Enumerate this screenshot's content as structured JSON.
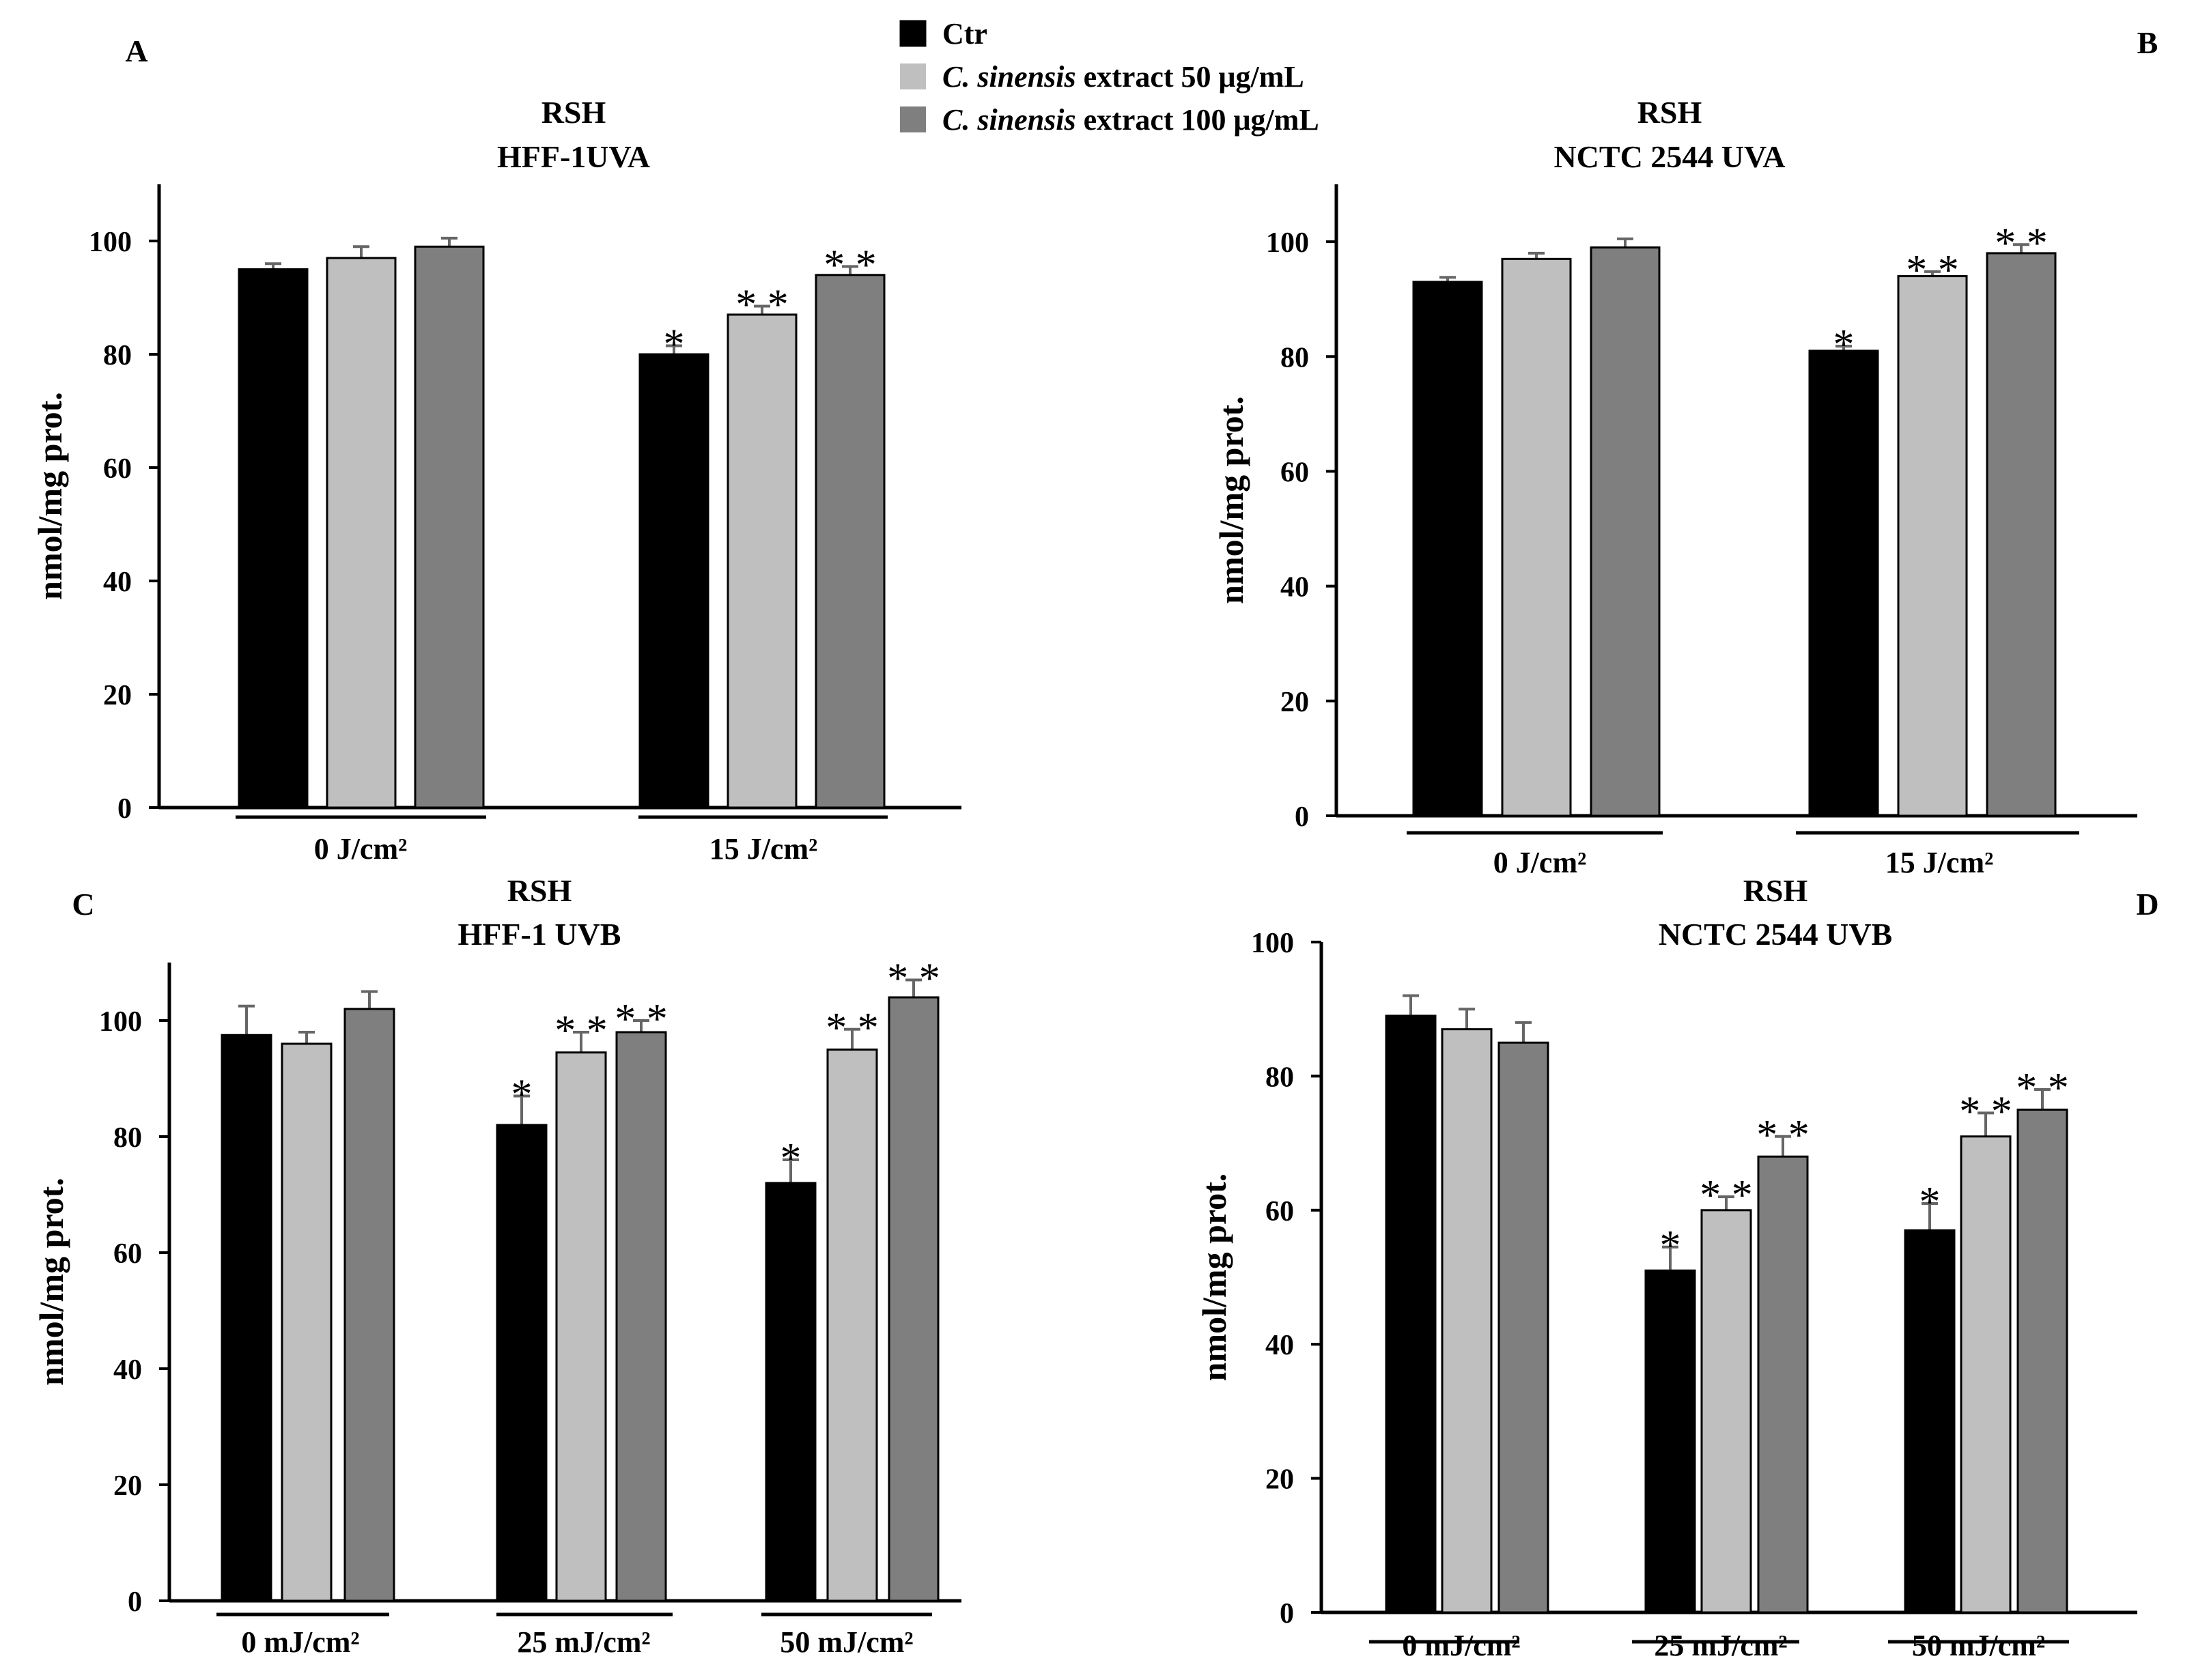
{
  "legend": {
    "items": [
      {
        "label": "Ctr",
        "italic": "",
        "rest": "Ctr",
        "color": "#000000"
      },
      {
        "label": "C. sinensis extract 50 μg/mL",
        "italic": "C. sinensis",
        "rest": " extract 50 μg/mL",
        "color": "#bfbfbf"
      },
      {
        "label": "C. sinensis extract 100 μg/mL",
        "italic": "C. sinensis",
        "rest": " extract 100 μg/mL",
        "color": "#7f7f7f"
      }
    ]
  },
  "chart_data": [
    {
      "panel": "A",
      "type": "bar",
      "title": [
        "RSH",
        "HFF-1UVA"
      ],
      "ylabel": "nmol/mg prot.",
      "ylim": [
        0,
        110
      ],
      "yticks": [
        0,
        20,
        40,
        60,
        80,
        100
      ],
      "categories": [
        "0 J/cm²",
        "15 J/cm²"
      ],
      "series": [
        {
          "name": "Ctr",
          "values": [
            95,
            80
          ],
          "errors": [
            1,
            1.5
          ]
        },
        {
          "name": "C. sinensis extract 50 μg/mL",
          "values": [
            97,
            87
          ],
          "errors": [
            2,
            1.5
          ]
        },
        {
          "name": "C. sinensis extract 100 μg/mL",
          "values": [
            99,
            94
          ],
          "errors": [
            1.5,
            1.5
          ]
        }
      ],
      "annotations": [
        [
          "",
          "*"
        ],
        [
          "",
          "**"
        ],
        [
          "",
          "**"
        ]
      ]
    },
    {
      "panel": "B",
      "type": "bar",
      "title": [
        "RSH",
        "NCTC 2544 UVA"
      ],
      "ylabel": "nmol/mg prot.",
      "ylim": [
        0,
        110
      ],
      "yticks": [
        0,
        20,
        40,
        60,
        80,
        100
      ],
      "categories": [
        "0 J/cm²",
        "15 J/cm²"
      ],
      "series": [
        {
          "name": "Ctr",
          "values": [
            93,
            81
          ],
          "errors": [
            0.8,
            0.8
          ]
        },
        {
          "name": "C. sinensis extract 50 μg/mL",
          "values": [
            97,
            94
          ],
          "errors": [
            1,
            0.8
          ]
        },
        {
          "name": "C. sinensis extract 100 μg/mL",
          "values": [
            99,
            98
          ],
          "errors": [
            1.5,
            1.5
          ]
        }
      ],
      "annotations": [
        [
          "",
          "*"
        ],
        [
          "",
          "**"
        ],
        [
          "",
          "**"
        ]
      ]
    },
    {
      "panel": "C",
      "type": "bar",
      "title": [
        "RSH",
        "HFF-1 UVB"
      ],
      "ylabel": "nmol/mg prot.",
      "ylim": [
        0,
        110
      ],
      "yticks": [
        0,
        20,
        40,
        60,
        80,
        100
      ],
      "categories": [
        "0 mJ/cm²",
        "25 mJ/cm²",
        "50 mJ/cm²"
      ],
      "series": [
        {
          "name": "Ctr",
          "values": [
            97.5,
            82,
            72
          ],
          "errors": [
            5,
            5,
            4
          ]
        },
        {
          "name": "C. sinensis extract 50 μg/mL",
          "values": [
            96,
            94.5,
            95
          ],
          "errors": [
            2,
            3.5,
            3.5
          ]
        },
        {
          "name": "C. sinensis extract 100 μg/mL",
          "values": [
            102,
            98,
            104
          ],
          "errors": [
            3,
            2,
            3
          ]
        }
      ],
      "annotations": [
        [
          "",
          "*",
          "*"
        ],
        [
          "",
          "**",
          "**"
        ],
        [
          "",
          "**",
          "**"
        ]
      ]
    },
    {
      "panel": "D",
      "type": "bar",
      "title": [
        "RSH",
        "NCTC 2544 UVB"
      ],
      "ylabel": "nmol/mg prot.",
      "ylim": [
        0,
        100
      ],
      "yticks": [
        0,
        20,
        40,
        60,
        80,
        100
      ],
      "categories": [
        "0 mJ/cm²",
        "25 mJ/cm²",
        "50 mJ/cm²"
      ],
      "series": [
        {
          "name": "Ctr",
          "values": [
            89,
            51,
            57
          ],
          "errors": [
            3,
            3.5,
            4
          ]
        },
        {
          "name": "C. sinensis extract 50 μg/mL",
          "values": [
            87,
            60,
            71
          ],
          "errors": [
            3,
            2,
            3.5
          ]
        },
        {
          "name": "C. sinensis extract 100 μg/mL",
          "values": [
            85,
            68,
            75
          ],
          "errors": [
            3,
            3,
            3
          ]
        }
      ],
      "annotations": [
        [
          "",
          "*",
          "*"
        ],
        [
          "",
          "**",
          "**"
        ],
        [
          "",
          "**",
          "**"
        ]
      ]
    }
  ]
}
